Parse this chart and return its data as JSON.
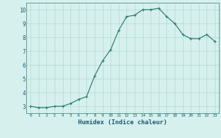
{
  "x": [
    0,
    1,
    2,
    3,
    4,
    5,
    6,
    7,
    8,
    9,
    10,
    11,
    12,
    13,
    14,
    15,
    16,
    17,
    18,
    19,
    20,
    21,
    22,
    23
  ],
  "y": [
    3.0,
    2.9,
    2.9,
    3.0,
    3.0,
    3.2,
    3.5,
    3.7,
    5.2,
    6.3,
    7.1,
    8.5,
    9.5,
    9.6,
    10.0,
    10.0,
    10.1,
    9.5,
    9.0,
    8.2,
    7.9,
    7.9,
    8.2,
    7.7
  ],
  "line_color": "#2e7d6e",
  "marker": "+",
  "bg_color": "#d6f0ee",
  "grid_color": "#b0d8d4",
  "xlabel": "Humidex (Indice chaleur)",
  "xlabel_fontsize": 6.5,
  "xlabel_color": "#1a5c6e",
  "tick_color": "#1a5c6e",
  "yticks": [
    3,
    4,
    5,
    6,
    7,
    8,
    9,
    10
  ],
  "ylim": [
    2.5,
    10.5
  ],
  "xlim": [
    -0.5,
    23.5
  ]
}
